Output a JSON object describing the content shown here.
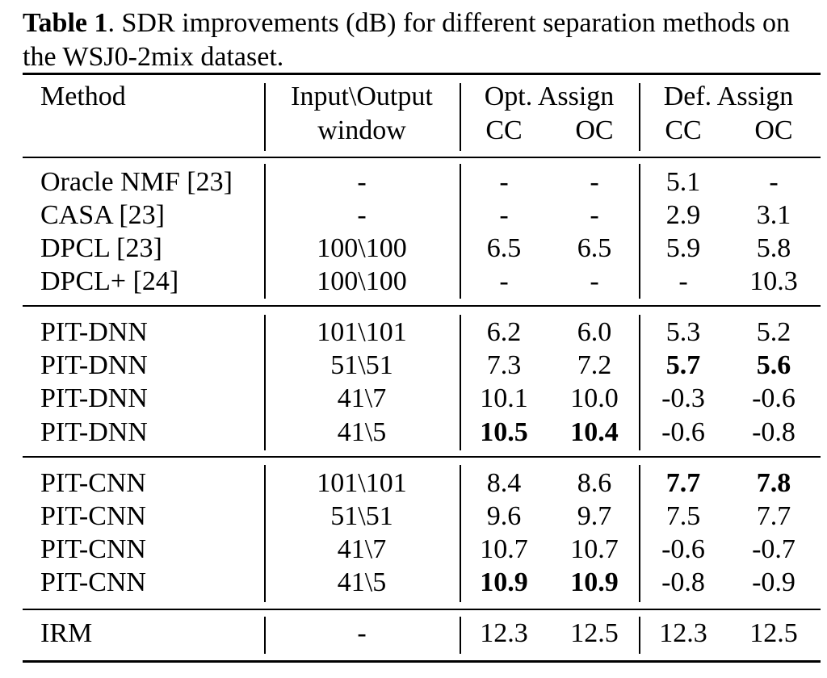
{
  "caption": {
    "label": "Table 1",
    "text": ". SDR improvements (dB) for different separation methods on the WSJ0-2mix dataset."
  },
  "header": {
    "method": "Method",
    "window_line1": "Input\\Output",
    "window_line2": "window",
    "opt_assign": "Opt. Assign",
    "def_assign": "Def. Assign",
    "cc1": "CC",
    "oc1": "OC",
    "cc2": "CC",
    "oc2": "OC"
  },
  "rows": [
    {
      "method": "Oracle NMF [23]",
      "window": "-",
      "opt_cc": "-",
      "opt_oc": "-",
      "def_cc": "5.1",
      "def_oc": "-"
    },
    {
      "method": "CASA [23]",
      "window": "-",
      "opt_cc": "-",
      "opt_oc": "-",
      "def_cc": "2.9",
      "def_oc": "3.1"
    },
    {
      "method": "DPCL [23]",
      "window": "100\\100",
      "opt_cc": "6.5",
      "opt_oc": "6.5",
      "def_cc": "5.9",
      "def_oc": "5.8"
    },
    {
      "method": "DPCL+ [24]",
      "window": "100\\100",
      "opt_cc": "-",
      "opt_oc": "-",
      "def_cc": "-",
      "def_oc": "10.3"
    },
    {
      "method": "PIT-DNN",
      "window": "101\\101",
      "opt_cc": "6.2",
      "opt_oc": "6.0",
      "def_cc": "5.3",
      "def_oc": "5.2"
    },
    {
      "method": "PIT-DNN",
      "window": "51\\51",
      "opt_cc": "7.3",
      "opt_oc": "7.2",
      "def_cc": "5.7",
      "def_oc": "5.6"
    },
    {
      "method": "PIT-DNN",
      "window": "41\\7",
      "opt_cc": "10.1",
      "opt_oc": "10.0",
      "def_cc": "-0.3",
      "def_oc": "-0.6"
    },
    {
      "method": "PIT-DNN",
      "window": "41\\5",
      "opt_cc": "10.5",
      "opt_oc": "10.4",
      "def_cc": "-0.6",
      "def_oc": "-0.8"
    },
    {
      "method": "PIT-CNN",
      "window": "101\\101",
      "opt_cc": "8.4",
      "opt_oc": "8.6",
      "def_cc": "7.7",
      "def_oc": "7.8"
    },
    {
      "method": "PIT-CNN",
      "window": "51\\51",
      "opt_cc": "9.6",
      "opt_oc": "9.7",
      "def_cc": "7.5",
      "def_oc": "7.7"
    },
    {
      "method": "PIT-CNN",
      "window": "41\\7",
      "opt_cc": "10.7",
      "opt_oc": "10.7",
      "def_cc": "-0.6",
      "def_oc": "-0.7"
    },
    {
      "method": "PIT-CNN",
      "window": "41\\5",
      "opt_cc": "10.9",
      "opt_oc": "10.9",
      "def_cc": "-0.8",
      "def_oc": "-0.9"
    },
    {
      "method": "IRM",
      "window": "-",
      "opt_cc": "12.3",
      "opt_oc": "12.5",
      "def_cc": "12.3",
      "def_oc": "12.5"
    }
  ],
  "bold_cells": [
    {
      "row": 5,
      "col": "def_cc"
    },
    {
      "row": 5,
      "col": "def_oc"
    },
    {
      "row": 7,
      "col": "opt_cc"
    },
    {
      "row": 7,
      "col": "opt_oc"
    },
    {
      "row": 8,
      "col": "def_cc"
    },
    {
      "row": 8,
      "col": "def_oc"
    },
    {
      "row": 11,
      "col": "opt_cc"
    },
    {
      "row": 11,
      "col": "opt_oc"
    }
  ]
}
